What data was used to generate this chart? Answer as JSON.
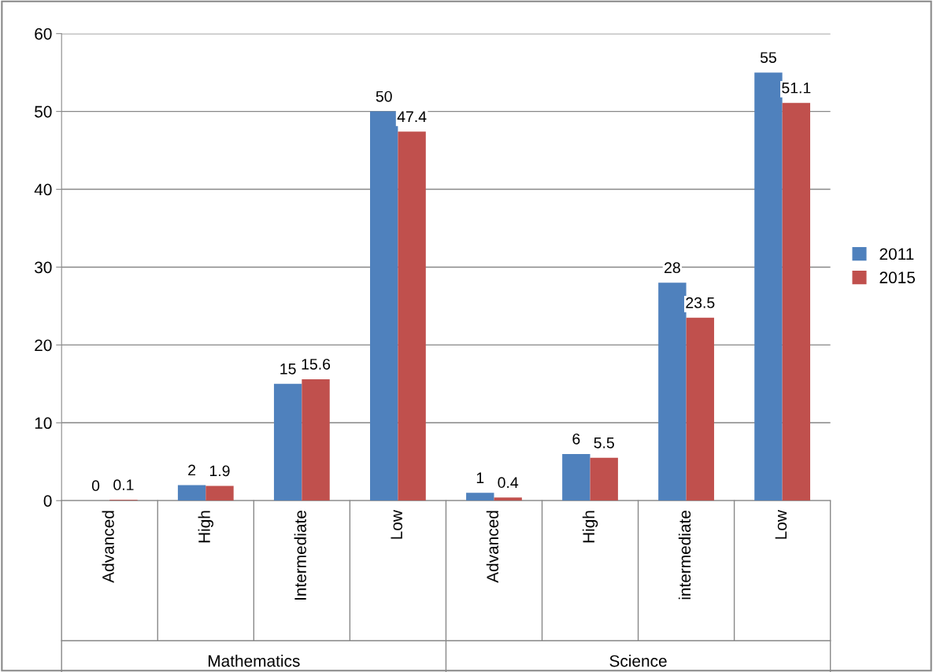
{
  "chart_data": {
    "type": "bar",
    "categories": [
      "Advanced",
      "High",
      "Intermediate",
      "Low",
      "Advanced",
      "High",
      "intermediate",
      "Low"
    ],
    "series": [
      {
        "name": "2011",
        "color": "#4f81bd",
        "values": [
          0,
          2,
          15,
          50,
          1,
          6,
          28,
          55
        ]
      },
      {
        "name": "2015",
        "color": "#c0504d",
        "values": [
          0.1,
          1.9,
          15.6,
          47.4,
          0.4,
          5.5,
          23.5,
          51.1
        ]
      }
    ],
    "annotations": [
      "Mathematics",
      "Science"
    ],
    "ylim": [
      0,
      60
    ],
    "yticks": [
      0,
      10,
      20,
      30,
      40,
      50,
      60
    ],
    "grid": "y",
    "legend": "right",
    "data_labels": true
  }
}
